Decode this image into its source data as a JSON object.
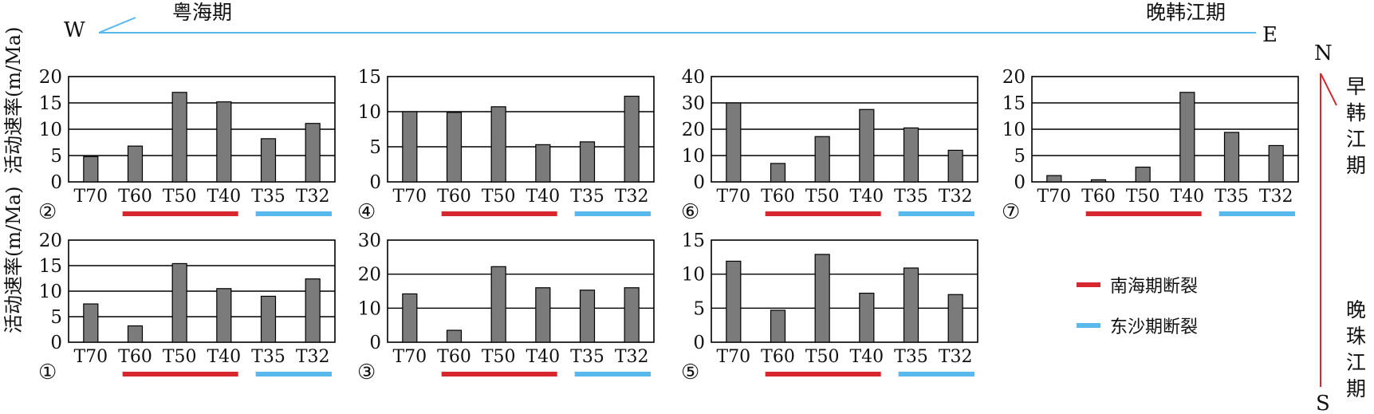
{
  "header": {
    "west_label": "W",
    "east_label": "E",
    "west_period": "粤海期",
    "east_period": "晚韩江期",
    "line_color": "#59b8ec"
  },
  "side": {
    "north_label": "N",
    "south_label": "S",
    "upper_period": "早韩江期",
    "lower_period": "晚珠江期",
    "line_color": "#d7282f"
  },
  "ylabel": "活动速率(m/Ma)",
  "legend": [
    {
      "label": "南海期断裂",
      "color": "#d7282f"
    },
    {
      "label": "东沙期断裂",
      "color": "#59b8ec"
    }
  ],
  "colors": {
    "bar": "#7b7b7b",
    "nanhai": "#d7282f",
    "dongsha": "#59b8ec"
  },
  "chart_data": [
    {
      "type": "bar",
      "panel_label": "②",
      "categories": [
        "T70",
        "T60",
        "T50",
        "T40",
        "T35",
        "T32"
      ],
      "values": [
        4.8,
        6.8,
        17.0,
        15.2,
        8.2,
        11.1
      ],
      "ylim": [
        0,
        20
      ],
      "yticks": [
        0,
        5,
        10,
        15,
        20
      ],
      "ylabel": "活动速率(m/Ma)",
      "grid": true
    },
    {
      "type": "bar",
      "panel_label": "④",
      "categories": [
        "T70",
        "T60",
        "T50",
        "T40",
        "T35",
        "T32"
      ],
      "values": [
        10.0,
        9.9,
        10.7,
        5.3,
        5.7,
        12.2
      ],
      "ylim": [
        0,
        15
      ],
      "yticks": [
        0,
        5,
        10,
        15
      ],
      "ylabel": "",
      "grid": true
    },
    {
      "type": "bar",
      "panel_label": "⑥",
      "categories": [
        "T70",
        "T60",
        "T50",
        "T40",
        "T35",
        "T32"
      ],
      "values": [
        30.0,
        7.0,
        17.2,
        27.5,
        20.5,
        12.0
      ],
      "ylim": [
        0,
        40
      ],
      "yticks": [
        0,
        10,
        20,
        30,
        40
      ],
      "ylabel": "",
      "grid": true
    },
    {
      "type": "bar",
      "panel_label": "⑦",
      "categories": [
        "T70",
        "T60",
        "T50",
        "T40",
        "T35",
        "T32"
      ],
      "values": [
        1.2,
        0.4,
        2.8,
        17.0,
        9.4,
        6.9
      ],
      "ylim": [
        0,
        20
      ],
      "yticks": [
        0,
        5,
        10,
        15,
        20
      ],
      "ylabel": "",
      "grid": true
    },
    {
      "type": "bar",
      "panel_label": "①",
      "categories": [
        "T70",
        "T60",
        "T50",
        "T40",
        "T35",
        "T32"
      ],
      "values": [
        7.5,
        3.2,
        15.4,
        10.5,
        9.0,
        12.4
      ],
      "ylim": [
        0,
        20
      ],
      "yticks": [
        0,
        5,
        10,
        15,
        20
      ],
      "ylabel": "活动速率(m/Ma)",
      "grid": true
    },
    {
      "type": "bar",
      "panel_label": "③",
      "categories": [
        "T70",
        "T60",
        "T50",
        "T40",
        "T35",
        "T32"
      ],
      "values": [
        14.2,
        3.5,
        22.2,
        16.0,
        15.3,
        16.0
      ],
      "ylim": [
        0,
        30
      ],
      "yticks": [
        0,
        10,
        20,
        30
      ],
      "ylabel": "",
      "grid": true
    },
    {
      "type": "bar",
      "panel_label": "⑤",
      "categories": [
        "T70",
        "T60",
        "T50",
        "T40",
        "T35",
        "T32"
      ],
      "values": [
        11.9,
        4.7,
        12.9,
        7.2,
        10.9,
        7.0
      ],
      "ylim": [
        0,
        15
      ],
      "yticks": [
        0,
        5,
        10,
        15
      ],
      "ylabel": "",
      "grid": true
    }
  ]
}
